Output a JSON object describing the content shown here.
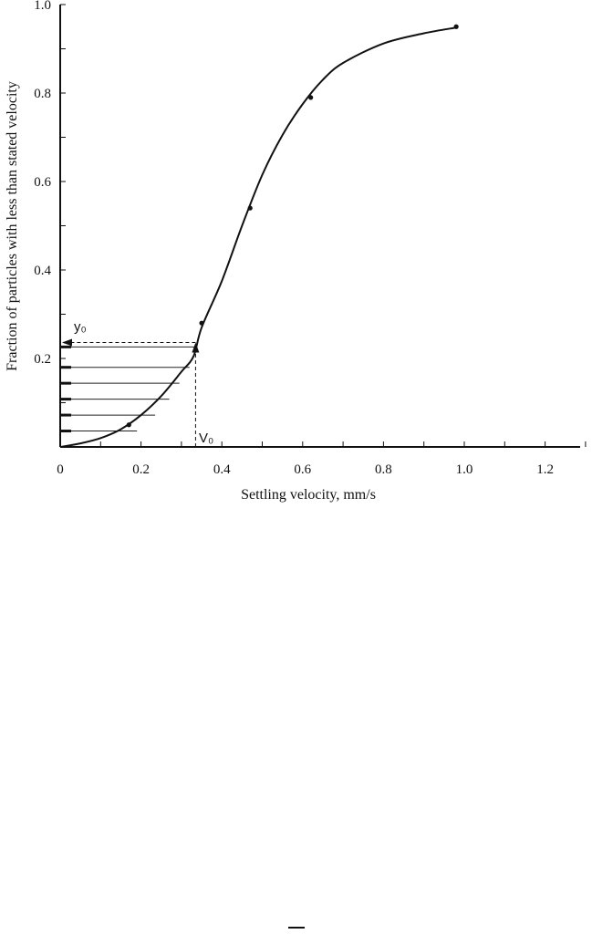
{
  "chart_data": {
    "type": "line",
    "xlabel": "Settling velocity, mm/s",
    "ylabel": "Fraction of particles with less than stated velocity",
    "xlim": [
      0,
      1.3
    ],
    "ylim": [
      0,
      1.0
    ],
    "x_ticks": [
      "0",
      "0.2",
      "0.4",
      "0.6",
      "0.8",
      "1.0",
      "1.2"
    ],
    "y_ticks": [
      "0.2",
      "0.4",
      "0.6",
      "0.8",
      "1.0"
    ],
    "grid": false,
    "series": [
      {
        "points": [
          {
            "x": 0.17,
            "y": 0.05
          },
          {
            "x": 0.35,
            "y": 0.28
          },
          {
            "x": 0.47,
            "y": 0.54
          },
          {
            "x": 0.62,
            "y": 0.79
          },
          {
            "x": 0.98,
            "y": 0.95
          }
        ],
        "curve": [
          [
            0,
            0
          ],
          [
            0.05,
            0.008
          ],
          [
            0.1,
            0.02
          ],
          [
            0.15,
            0.04
          ],
          [
            0.2,
            0.072
          ],
          [
            0.25,
            0.115
          ],
          [
            0.3,
            0.17
          ],
          [
            0.33,
            0.205
          ],
          [
            0.35,
            0.27
          ],
          [
            0.4,
            0.375
          ],
          [
            0.45,
            0.5
          ],
          [
            0.5,
            0.615
          ],
          [
            0.55,
            0.705
          ],
          [
            0.6,
            0.775
          ],
          [
            0.65,
            0.83
          ],
          [
            0.7,
            0.868
          ],
          [
            0.8,
            0.912
          ],
          [
            0.9,
            0.935
          ],
          [
            0.98,
            0.948
          ]
        ]
      }
    ],
    "increments": [
      {
        "x": 0.19,
        "y": 0.036
      },
      {
        "x": 0.235,
        "y": 0.072
      },
      {
        "x": 0.27,
        "y": 0.108
      },
      {
        "x": 0.295,
        "y": 0.144
      },
      {
        "x": 0.32,
        "y": 0.18
      },
      {
        "x": 0.335,
        "y": 0.226
      }
    ],
    "annotations": {
      "y0_label": "y₀",
      "v0_label": "V₀",
      "v0": 0.335,
      "y0": 0.236
    }
  }
}
